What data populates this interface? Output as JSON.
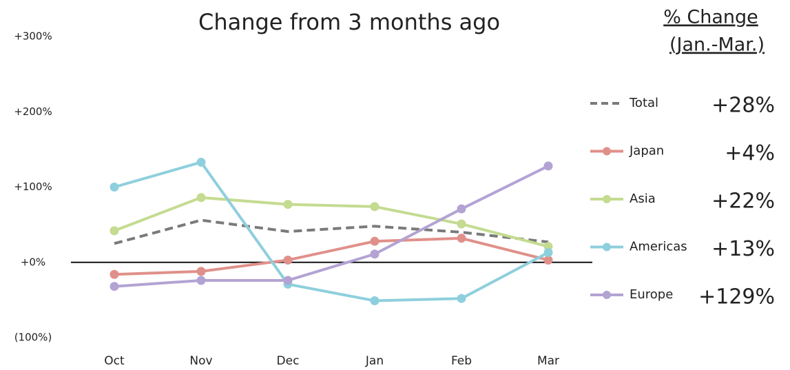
{
  "chart_data": {
    "type": "line",
    "title": "Change from 3 months ago",
    "side_header": [
      "% Change",
      "(Jan.-Mar.)"
    ],
    "categories": [
      "Oct",
      "Nov",
      "Dec",
      "Jan",
      "Feb",
      "Mar"
    ],
    "ylim": [
      -100,
      300
    ],
    "yticks": [
      {
        "value": 300,
        "label": "+300%"
      },
      {
        "value": 200,
        "label": "+200%"
      },
      {
        "value": 100,
        "label": "+100%"
      },
      {
        "value": 0,
        "label": "+0%"
      },
      {
        "value": -100,
        "label": "(100%)"
      }
    ],
    "zero_line": true,
    "grid": false,
    "legend": "right",
    "series": [
      {
        "name": "Total",
        "color": "#7a7a7a",
        "dashed": true,
        "markers": false,
        "values": [
          25,
          56,
          41,
          48,
          40,
          27
        ],
        "change_label": "+28%"
      },
      {
        "name": "Japan",
        "color": "#e0908a",
        "dashed": false,
        "markers": true,
        "values": [
          -16,
          -12,
          3,
          28,
          32,
          3
        ],
        "change_label": "+4%"
      },
      {
        "name": "Asia",
        "color": "#c4db90",
        "dashed": false,
        "markers": true,
        "values": [
          42,
          86,
          77,
          74,
          51,
          21
        ],
        "change_label": "+22%"
      },
      {
        "name": "Americas",
        "color": "#8ecfdd",
        "dashed": false,
        "markers": true,
        "values": [
          100,
          133,
          -29,
          -51,
          -48,
          13
        ],
        "change_label": "+13%"
      },
      {
        "name": "Europe",
        "color": "#b3a3d3",
        "dashed": false,
        "markers": true,
        "values": [
          -32,
          -24,
          -24,
          11,
          71,
          128
        ],
        "change_label": "+129%"
      }
    ]
  }
}
